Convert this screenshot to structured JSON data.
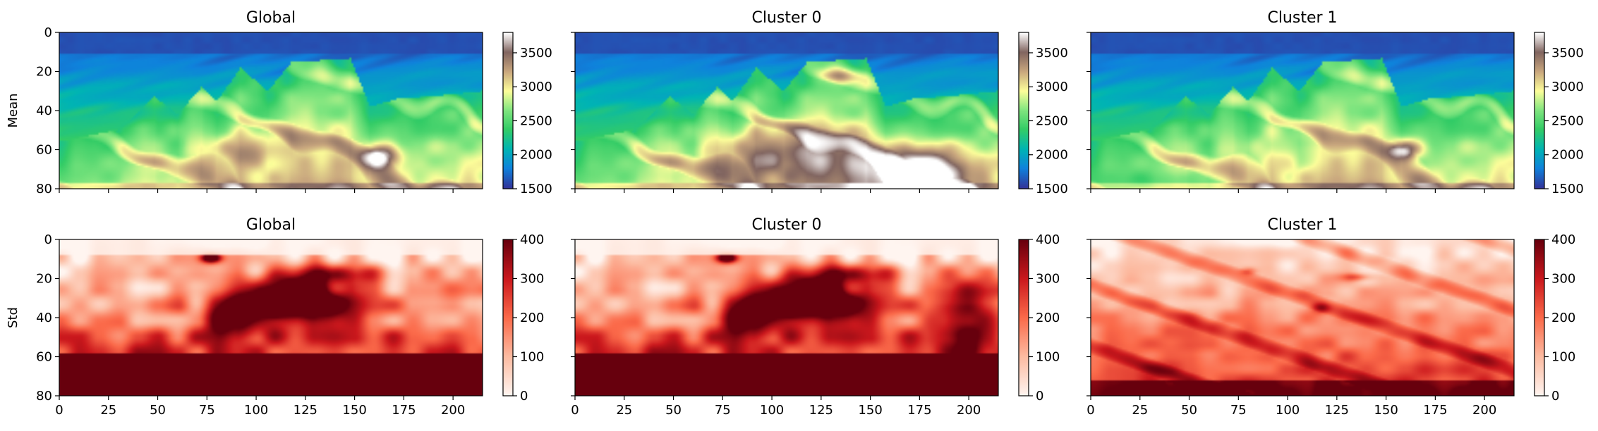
{
  "figure": {
    "row_labels": [
      "Mean",
      "Std"
    ]
  },
  "colormaps": {
    "mean": [
      [
        0,
        "#333399"
      ],
      [
        0.13,
        "#0f82dc"
      ],
      [
        0.25,
        "#00b4b4"
      ],
      [
        0.38,
        "#33cc66"
      ],
      [
        0.5,
        "#7fe57f"
      ],
      [
        0.625,
        "#fdfe9a"
      ],
      [
        0.75,
        "#c9a77e"
      ],
      [
        0.875,
        "#816560"
      ],
      [
        1,
        "#ffffff"
      ]
    ],
    "std": [
      [
        0,
        "#fff5f0"
      ],
      [
        0.25,
        "#fcbba1"
      ],
      [
        0.5,
        "#fb6a4a"
      ],
      [
        0.75,
        "#cb181d"
      ],
      [
        1,
        "#67000d"
      ]
    ]
  },
  "chart_data": [
    {
      "type": "heatmap",
      "title": "Global",
      "row": "Mean",
      "ylabel": "Mean",
      "field": "mean",
      "variant": "global",
      "xlim": [
        0,
        215
      ],
      "ylim": [
        80,
        0
      ],
      "xticks": [
        "0",
        "25",
        "50",
        "75",
        "100",
        "125",
        "150",
        "175",
        "200"
      ],
      "yticks": [
        "0",
        "20",
        "40",
        "60",
        "80"
      ],
      "colorbar": {
        "min": 1500,
        "max": 3800,
        "ticks": [
          "1500",
          "2000",
          "2500",
          "3000",
          "3500"
        ]
      }
    },
    {
      "type": "heatmap",
      "title": "Cluster 0",
      "row": "Mean",
      "ylabel": "",
      "field": "mean",
      "variant": "c0",
      "xlim": [
        0,
        215
      ],
      "ylim": [
        80,
        0
      ],
      "xticks": [
        "0",
        "25",
        "50",
        "75",
        "100",
        "125",
        "150",
        "175",
        "200"
      ],
      "yticks": [
        "0",
        "20",
        "40",
        "60",
        "80"
      ],
      "colorbar": {
        "min": 1500,
        "max": 3800,
        "ticks": [
          "1500",
          "2000",
          "2500",
          "3000",
          "3500"
        ]
      }
    },
    {
      "type": "heatmap",
      "title": "Cluster 1",
      "row": "Mean",
      "ylabel": "",
      "field": "mean",
      "variant": "c1",
      "xlim": [
        0,
        215
      ],
      "ylim": [
        80,
        0
      ],
      "xticks": [
        "0",
        "25",
        "50",
        "75",
        "100",
        "125",
        "150",
        "175",
        "200"
      ],
      "yticks": [
        "0",
        "20",
        "40",
        "60",
        "80"
      ],
      "colorbar": {
        "min": 1500,
        "max": 3800,
        "ticks": [
          "1500",
          "2000",
          "2500",
          "3000",
          "3500"
        ]
      }
    },
    {
      "type": "heatmap",
      "title": "Global",
      "row": "Std",
      "ylabel": "Std",
      "field": "std",
      "variant": "global",
      "xlim": [
        0,
        215
      ],
      "ylim": [
        80,
        0
      ],
      "xticks": [
        "0",
        "25",
        "50",
        "75",
        "100",
        "125",
        "150",
        "175",
        "200"
      ],
      "yticks": [
        "0",
        "20",
        "40",
        "60",
        "80"
      ],
      "colorbar": {
        "min": 0,
        "max": 400,
        "ticks": [
          "0",
          "100",
          "200",
          "300",
          "400"
        ]
      }
    },
    {
      "type": "heatmap",
      "title": "Cluster 0",
      "row": "Std",
      "ylabel": "",
      "field": "std",
      "variant": "c0",
      "xlim": [
        0,
        215
      ],
      "ylim": [
        80,
        0
      ],
      "xticks": [
        "0",
        "25",
        "50",
        "75",
        "100",
        "125",
        "150",
        "175",
        "200"
      ],
      "yticks": [
        "0",
        "20",
        "40",
        "60",
        "80"
      ],
      "colorbar": {
        "min": 0,
        "max": 400,
        "ticks": [
          "0",
          "100",
          "200",
          "300",
          "400"
        ]
      }
    },
    {
      "type": "heatmap",
      "title": "Cluster 1",
      "row": "Std",
      "ylabel": "",
      "field": "std",
      "variant": "c1",
      "xlim": [
        0,
        215
      ],
      "ylim": [
        80,
        0
      ],
      "xticks": [
        "0",
        "25",
        "50",
        "75",
        "100",
        "125",
        "150",
        "175",
        "200"
      ],
      "yticks": [
        "0",
        "20",
        "40",
        "60",
        "80"
      ],
      "colorbar": {
        "min": 0,
        "max": 400,
        "ticks": [
          "0",
          "100",
          "200",
          "300",
          "400"
        ]
      }
    }
  ]
}
